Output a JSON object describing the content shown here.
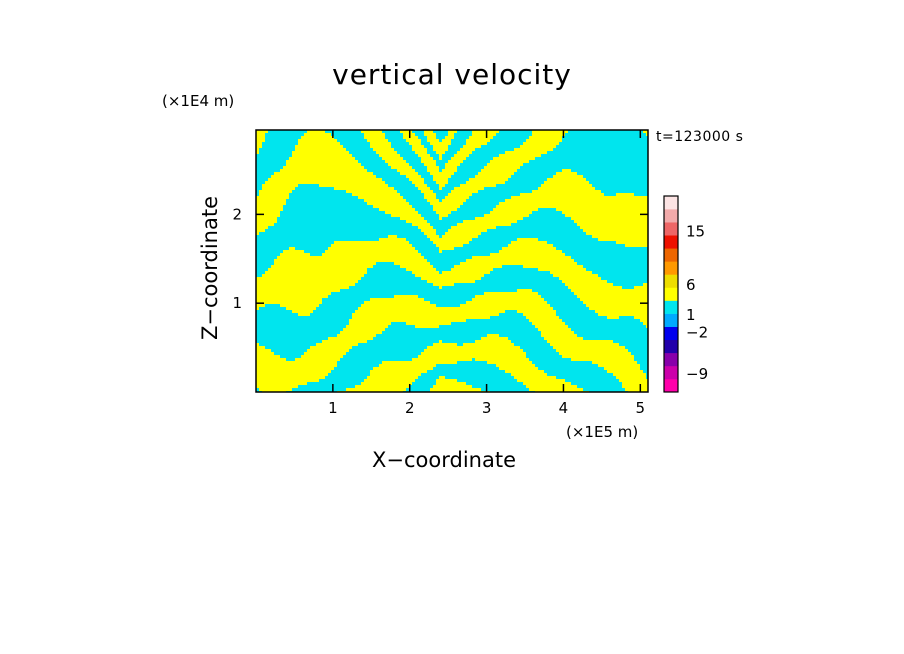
{
  "chart_data": {
    "type": "heatmap",
    "title": "vertical velocity",
    "xlabel": "X−coordinate",
    "ylabel": "Z−coordinate",
    "x_multiplier": "(×1E5 m)",
    "y_multiplier": "(×1E4 m)",
    "annotation": "t=123000 s",
    "x_ticks": [
      "1",
      "2",
      "3",
      "4",
      "5"
    ],
    "x_tick_values": [
      1,
      2,
      3,
      4,
      5
    ],
    "y_ticks": [
      "1",
      "2"
    ],
    "y_tick_values": [
      1,
      2
    ],
    "xlim": [
      0,
      5.1
    ],
    "ylim": [
      0,
      2.95
    ],
    "grid": false,
    "field_colors": {
      "positive": "#ffff00",
      "negative": "#00e5ee"
    },
    "colorbar": {
      "tick_labels": [
        "15",
        "6",
        "1",
        "−2",
        "−9"
      ],
      "tick_values": [
        15,
        6,
        1,
        -2,
        -9
      ],
      "colors": [
        "#ff00aa",
        "#cc00aa",
        "#8800aa",
        "#2200aa",
        "#0000ee",
        "#00aaff",
        "#00e5ee",
        "#ffff00",
        "#eedd00",
        "#ff9900",
        "#ee6600",
        "#ee1100",
        "#ee6666",
        "#f2aaaa",
        "#fce4e4"
      ]
    }
  }
}
